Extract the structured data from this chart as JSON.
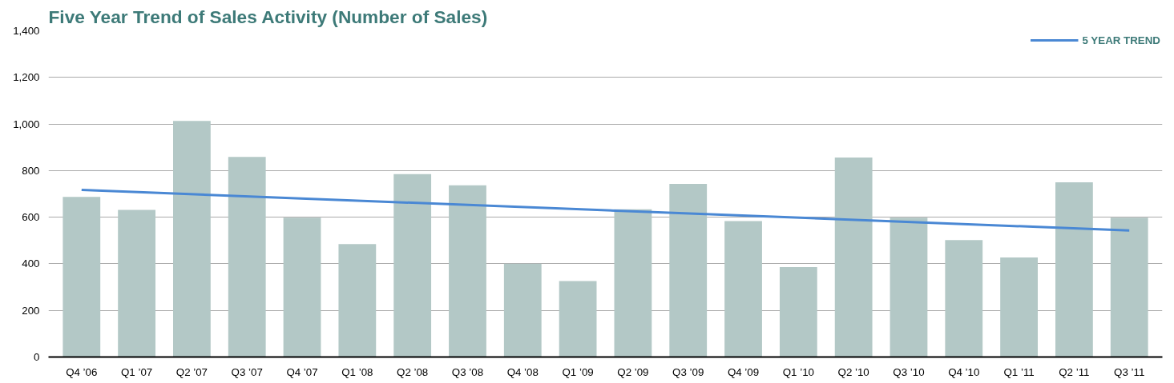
{
  "chart_data": {
    "type": "bar",
    "title": "Five Year Trend of Sales Activity (Number of Sales)",
    "categories": [
      "Q4 ’06",
      "Q1 ’07",
      "Q2 ’07",
      "Q3 ’07",
      "Q4 ’07",
      "Q1 ’08",
      "Q2 ’08",
      "Q3 ’08",
      "Q4 ’08",
      "Q1 ’09",
      "Q2 ’09",
      "Q3 ’09",
      "Q4 ’09",
      "Q1 ’10",
      "Q2 ’10",
      "Q3 ’10",
      "Q4 ’10",
      "Q1 ’11",
      "Q2 ’11",
      "Q3 ’11"
    ],
    "series": [
      {
        "color": "#b3c8c6",
        "values": [
          687,
          631,
          1013,
          859,
          598,
          485,
          785,
          737,
          401,
          326,
          634,
          743,
          583,
          386,
          856,
          598,
          502,
          427,
          750,
          598
        ]
      },
      {
        "type": "line",
        "name": "5 YEAR TREND",
        "color": "#4a88d4",
        "x": [
          "Q4 ’06",
          "Q3 ’11"
        ],
        "values": [
          717,
          543
        ]
      }
    ],
    "ylim": [
      0,
      1400
    ],
    "yticks": [
      0,
      {
        "value": 200,
        "label": "200"
      },
      {
        "value": 400,
        "label": "400"
      },
      {
        "value": 600,
        "label": "600"
      },
      {
        "value": 800,
        "label": "800"
      },
      {
        "value": 1000,
        "label": "1,000"
      },
      {
        "value": 1200,
        "label": "1,200"
      },
      {
        "value": 1400,
        "label": "1,400"
      }
    ],
    "grid": "y",
    "legend": "top right"
  }
}
